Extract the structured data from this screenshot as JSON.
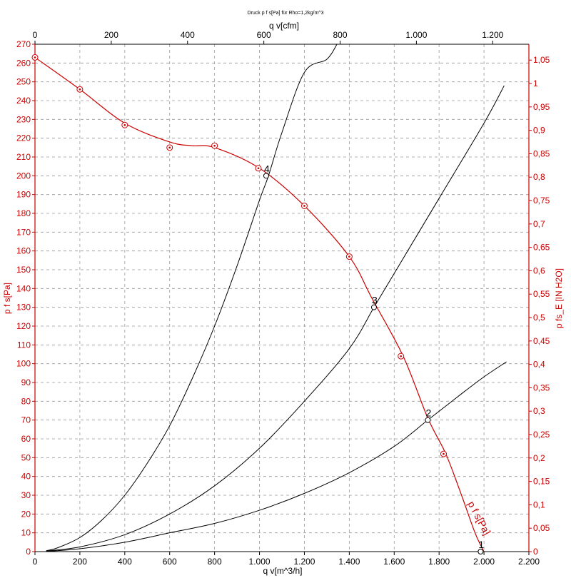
{
  "chart_data": {
    "type": "line",
    "title": "Druck p f s[Pa] für Rho=1,2kg/m^3",
    "xlabel": "q v[m^3/h]",
    "x2label": "q v[cfm]",
    "ylabel": "p f s[Pa]",
    "y2label": "p fs_E [IN H2O]",
    "xlim": [
      0,
      2200
    ],
    "ylim": [
      0,
      270
    ],
    "x2lim": [
      0,
      1294.9
    ],
    "y2lim": [
      0,
      1.0839
    ],
    "grid": true,
    "x_ticks": [
      "0",
      "200",
      "400",
      "600",
      "800",
      "1.000",
      "1.200",
      "1.400",
      "1.600",
      "1.800",
      "2.000",
      "2.200"
    ],
    "x2_ticks": [
      "0",
      "200",
      "400",
      "600",
      "800",
      "1.000",
      "1.200"
    ],
    "y_ticks": [
      "0",
      "10",
      "20",
      "30",
      "40",
      "50",
      "60",
      "70",
      "80",
      "90",
      "100",
      "110",
      "120",
      "130",
      "140",
      "150",
      "160",
      "170",
      "180",
      "190",
      "200",
      "210",
      "220",
      "230",
      "240",
      "250",
      "260",
      "270"
    ],
    "y2_ticks": [
      "0",
      "0,05",
      "0,1",
      "0,15",
      "0,2",
      "0,25",
      "0,3",
      "0,35",
      "0,4",
      "0,45",
      "0,5",
      "0,55",
      "0,6",
      "0,65",
      "0,7",
      "0,75",
      "0,8",
      "0,85",
      "0,9",
      "0,95",
      "1",
      "1,05"
    ],
    "fan_curve": {
      "name": "p f s[Pa]",
      "color": "#cc0000",
      "x": [
        0,
        200,
        400,
        600,
        700,
        800,
        1000,
        1200,
        1400,
        1500,
        1640,
        1750,
        1830,
        1900,
        1960,
        2000
      ],
      "y": [
        263,
        246,
        228,
        218,
        216,
        215,
        204,
        184,
        157,
        135,
        104,
        71,
        52,
        30,
        10,
        0
      ],
      "markers_x": [
        0,
        200,
        400,
        600,
        800,
        995,
        1200,
        1400,
        1630,
        1820
      ],
      "markers_y": [
        263,
        246,
        227,
        215,
        216,
        204,
        184,
        157,
        104,
        52
      ]
    },
    "system_curves": [
      {
        "label": "4",
        "color": "#000000",
        "x": [
          50,
          100,
          200,
          300,
          400,
          500,
          600,
          700,
          800,
          900,
          1000,
          1040,
          1100,
          1200,
          1300,
          1345
        ],
        "y": [
          0.5,
          2,
          7.5,
          17,
          30,
          47,
          67,
          92,
          120,
          152,
          187,
          200,
          223,
          255,
          262,
          270
        ]
      },
      {
        "label": "3",
        "color": "#000000",
        "x": [
          50,
          200,
          400,
          600,
          800,
          1000,
          1200,
          1400,
          1510,
          1600,
          1800,
          2000,
          2090
        ],
        "y": [
          0.3,
          2.5,
          9,
          20,
          35,
          55,
          80,
          108,
          130,
          148,
          188,
          228,
          248
        ]
      },
      {
        "label": "2",
        "color": "#000000",
        "x": [
          50,
          200,
          400,
          600,
          800,
          1000,
          1200,
          1400,
          1600,
          1750,
          1900,
          2000,
          2100
        ],
        "y": [
          0.1,
          1.5,
          5,
          10,
          15,
          22,
          31,
          42,
          56,
          70,
          84,
          93,
          101
        ]
      },
      {
        "label": "1",
        "color": "#000000",
        "x": [
          1985,
          2000,
          2030
        ],
        "y": [
          0,
          0,
          0
        ]
      }
    ],
    "operating_points": [
      {
        "label": "4",
        "x": 1030,
        "y": 200
      },
      {
        "label": "3",
        "x": 1510,
        "y": 130
      },
      {
        "label": "2",
        "x": 1750,
        "y": 70
      },
      {
        "label": "1",
        "x": 1985,
        "y": 0
      }
    ],
    "curve_label": "p f s[Pa]"
  }
}
